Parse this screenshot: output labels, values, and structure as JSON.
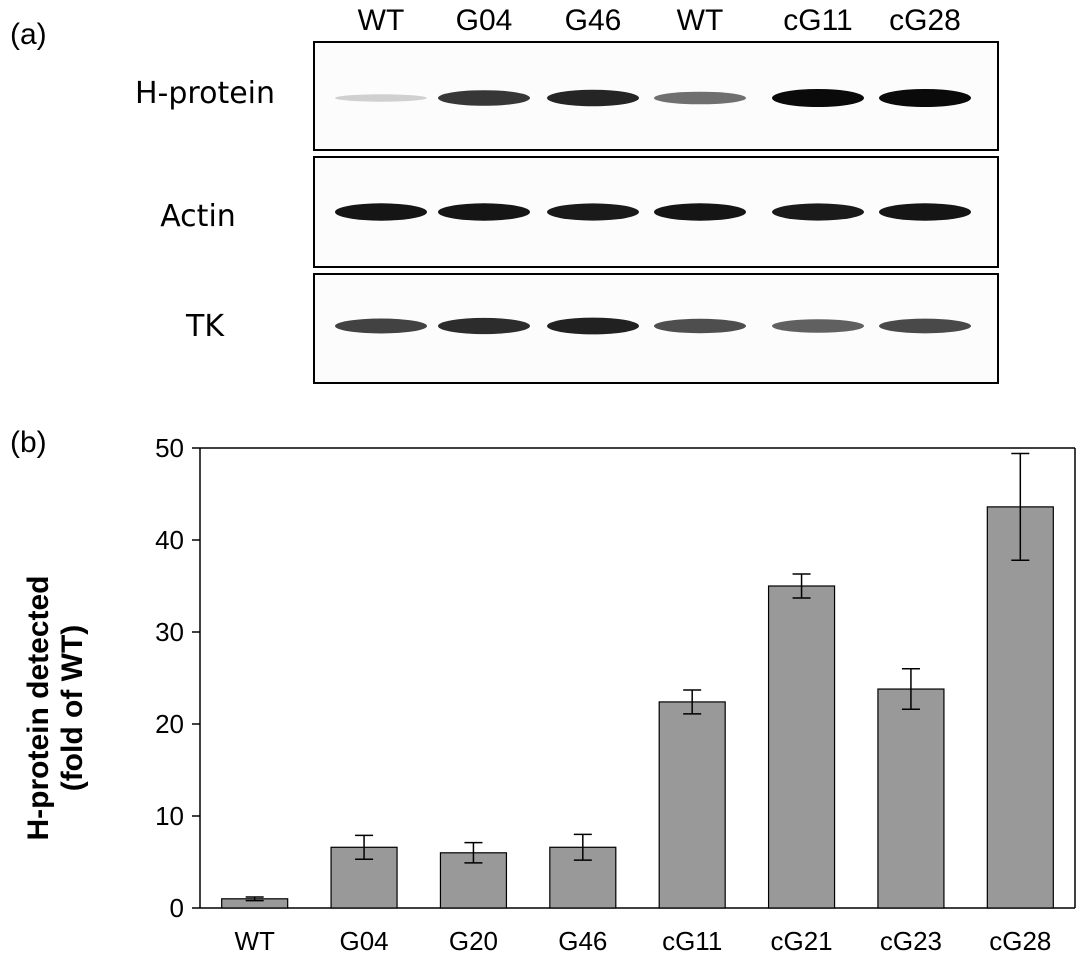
{
  "panel_a": {
    "label": "(a)",
    "lanes": [
      "WT",
      "G04",
      "G46",
      "WT",
      "cG11",
      "cG28"
    ],
    "blots": [
      {
        "label": "H-protein",
        "band_intensity": [
          0.12,
          0.8,
          0.88,
          0.55,
          1.0,
          1.0
        ]
      },
      {
        "label": "Actin",
        "band_intensity": [
          0.95,
          0.95,
          0.93,
          0.95,
          0.93,
          0.95
        ]
      },
      {
        "label": "TK",
        "band_intensity": [
          0.75,
          0.85,
          0.9,
          0.7,
          0.62,
          0.72
        ]
      }
    ]
  },
  "panel_b": {
    "label": "(b)"
  },
  "chart_data": {
    "type": "bar",
    "categories": [
      "WT",
      "G04",
      "G20",
      "G46",
      "cG11",
      "cG21",
      "cG23",
      "cG28"
    ],
    "series": [
      {
        "values": [
          1.0,
          6.6,
          6.0,
          6.6,
          22.4,
          35.0,
          23.8,
          43.6
        ],
        "errors": [
          0.2,
          1.3,
          1.1,
          1.4,
          1.3,
          1.3,
          2.2,
          5.8
        ]
      }
    ],
    "ylabel_line1": "H-protein detected",
    "ylabel_line2": "(fold of WT)",
    "xlabel": "",
    "ylim": [
      0,
      50
    ],
    "yticks": [
      0,
      10,
      20,
      30,
      40,
      50
    ],
    "bar_color": "#999999",
    "grid": false
  }
}
